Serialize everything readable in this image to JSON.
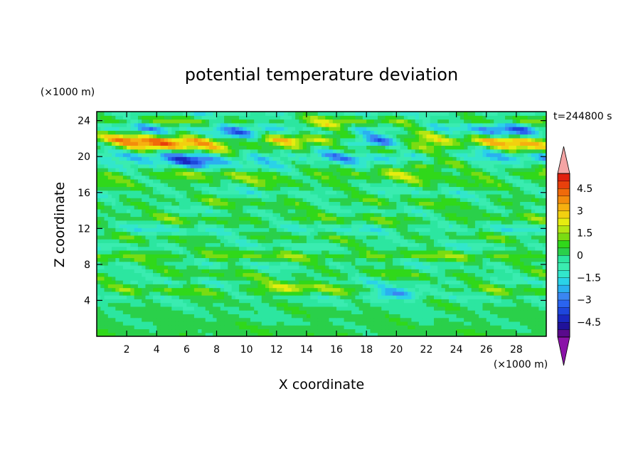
{
  "chart_data": {
    "type": "heatmap",
    "title": "potential temperature deviation",
    "xlabel": "X coordinate",
    "ylabel": "Z coordinate",
    "x_unit": "(×1000 m)",
    "y_unit": "(×1000 m)",
    "time_label": "t=244800 s",
    "xlim": [
      0,
      30
    ],
    "ylim": [
      0,
      25
    ],
    "x_ticks": [
      2,
      4,
      6,
      8,
      10,
      12,
      14,
      16,
      18,
      20,
      22,
      24,
      26,
      28
    ],
    "x_tick_labels": [
      "2",
      "4",
      "6",
      "8",
      "10",
      "12",
      "14",
      "16",
      "18",
      "20",
      "22",
      "24",
      "26",
      "28"
    ],
    "y_ticks": [
      4,
      8,
      12,
      16,
      20,
      24
    ],
    "y_tick_labels": [
      "4",
      "8",
      "12",
      "16",
      "20",
      "24"
    ],
    "colorbar": {
      "levels": [
        -5.5,
        -5,
        -4.5,
        -4,
        -3.5,
        -3,
        -2.5,
        -2,
        -1.5,
        -1,
        -0.5,
        0,
        0.5,
        1,
        1.5,
        2,
        2.5,
        3,
        3.5,
        4,
        4.5,
        5,
        5.5
      ],
      "colors": [
        "#5a0a8c",
        "#20129a",
        "#1a28c0",
        "#1e46dc",
        "#2a64f0",
        "#3a86f2",
        "#2ab0f0",
        "#2ad2e8",
        "#32e6cc",
        "#3aecb0",
        "#2ce6a0",
        "#2ad04a",
        "#30d81a",
        "#7adc12",
        "#b4e614",
        "#e6ec10",
        "#f2d010",
        "#f6b010",
        "#f48c0c",
        "#f06a0a",
        "#e8400c",
        "#e0200e"
      ],
      "under_color": "#8a12a8",
      "over_color": "#f4a4a4",
      "tick_values": [
        4.5,
        3,
        1.5,
        0,
        -1.5,
        -3,
        -4.5
      ],
      "tick_labels": [
        "4.5",
        "3",
        "1.5",
        "0",
        "−1.5",
        "−3",
        "−4.5"
      ]
    },
    "bands": [
      {
        "z": 0.5,
        "value": 0.3,
        "variation": 0.3
      },
      {
        "z": 1.5,
        "value": 0.1,
        "variation": 0.35
      },
      {
        "z": 2.5,
        "value": 0.1,
        "variation": 0.4
      },
      {
        "z": 3.5,
        "value": 0.0,
        "variation": 0.5
      },
      {
        "z": 4.5,
        "value": -0.3,
        "variation": 0.8
      },
      {
        "z": 5.0,
        "value": 0.8,
        "variation": 0.9
      },
      {
        "z": 6.0,
        "value": -0.4,
        "variation": 0.9
      },
      {
        "z": 7.0,
        "value": 0.4,
        "variation": 0.8
      },
      {
        "z": 8.0,
        "value": -0.5,
        "variation": 0.8
      },
      {
        "z": 9.0,
        "value": 1.0,
        "variation": 0.7
      },
      {
        "z": 10.0,
        "value": -0.6,
        "variation": 0.8
      },
      {
        "z": 11.0,
        "value": 0.3,
        "variation": 0.8
      },
      {
        "z": 12.0,
        "value": -0.9,
        "variation": 0.8
      },
      {
        "z": 13.0,
        "value": 0.6,
        "variation": 0.8
      },
      {
        "z": 14.0,
        "value": -0.3,
        "variation": 0.8
      },
      {
        "z": 15.0,
        "value": 0.5,
        "variation": 0.9
      },
      {
        "z": 16.0,
        "value": -0.6,
        "variation": 0.8
      },
      {
        "z": 17.0,
        "value": 0.3,
        "variation": 0.9
      },
      {
        "z": 18.0,
        "value": 0.9,
        "variation": 1.0
      },
      {
        "z": 19.0,
        "value": -0.8,
        "variation": 1.1
      },
      {
        "z": 20.0,
        "value": -1.6,
        "variation": 1.3
      },
      {
        "z": 21.0,
        "value": 1.0,
        "variation": 1.3
      },
      {
        "z": 21.8,
        "value": 2.2,
        "variation": 1.6
      },
      {
        "z": 22.5,
        "value": 0.4,
        "variation": 1.6
      },
      {
        "z": 23.2,
        "value": -1.2,
        "variation": 1.4
      },
      {
        "z": 24.0,
        "value": 0.6,
        "variation": 1.0
      },
      {
        "z": 24.8,
        "value": -0.6,
        "variation": 0.8
      }
    ],
    "features": [
      {
        "x": 4.5,
        "z": 21.5,
        "value": 4.0,
        "note": "warm core"
      },
      {
        "x": 10.0,
        "z": 22.8,
        "value": -3.5,
        "note": "cold core"
      },
      {
        "x": 18.0,
        "z": 21.6,
        "value": -3.6,
        "note": "cold core"
      },
      {
        "x": 26.5,
        "z": 22.8,
        "value": -2.8,
        "note": "cold core"
      },
      {
        "x": 5.5,
        "z": 19.5,
        "value": -3.2,
        "note": "cold core"
      },
      {
        "x": 22.0,
        "z": 19.0,
        "value": 2.0,
        "note": "warm patch"
      },
      {
        "x": 29.5,
        "z": 21.5,
        "value": 2.8,
        "note": "warm patch"
      },
      {
        "x": 15.0,
        "z": 23.5,
        "value": 2.0,
        "note": "warm patch"
      },
      {
        "x": 20.0,
        "z": 4.8,
        "value": -2.5,
        "note": "cold streak"
      },
      {
        "x": 13.0,
        "z": 5.5,
        "value": 2.0,
        "note": "warm streak"
      }
    ]
  }
}
